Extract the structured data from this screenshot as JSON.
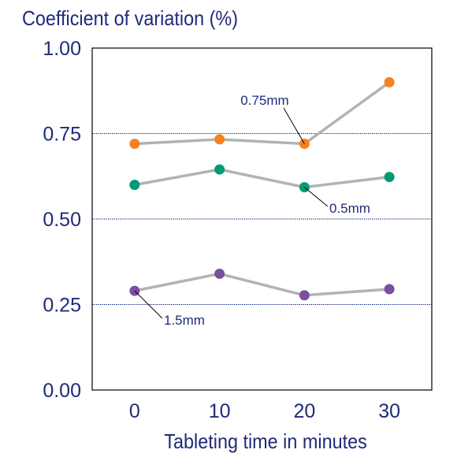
{
  "chart_data": {
    "type": "line",
    "title": "Coefficient of variation (%)",
    "xlabel": "Tableting time in minutes",
    "ylabel": "",
    "x": [
      0,
      10,
      20,
      30
    ],
    "xlim": [
      -5,
      35
    ],
    "ylim": [
      0,
      1.0
    ],
    "yticks": [
      "0.00",
      "0.25",
      "0.50",
      "0.75",
      "1.00"
    ],
    "xticks": [
      "0",
      "10",
      "20",
      "30"
    ],
    "grid": "horizontal dotted lines at 0.25, 0.50, 0.75",
    "series": [
      {
        "name": "0.75mm",
        "values": [
          0.72,
          0.733,
          0.72,
          0.9
        ],
        "color": "#f5821f"
      },
      {
        "name": "0.5mm",
        "values": [
          0.6,
          0.645,
          0.593,
          0.623
        ],
        "color": "#009a74"
      },
      {
        "name": "1.5mm",
        "values": [
          0.29,
          0.34,
          0.277,
          0.295
        ],
        "color": "#7a4fa0"
      }
    ],
    "line_color": "#b3b3b3",
    "text_color": "#1f2a7a"
  }
}
